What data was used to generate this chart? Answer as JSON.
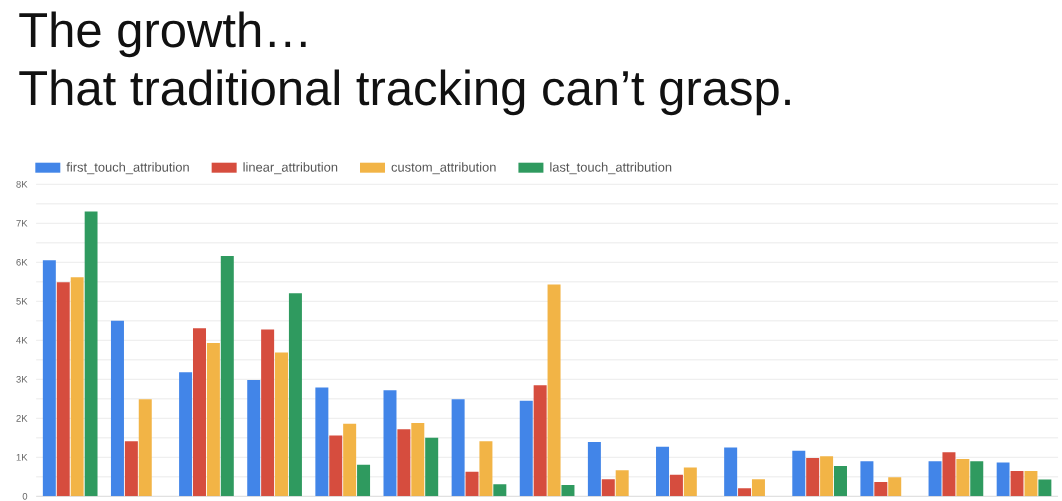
{
  "chart_data": {
    "type": "bar",
    "title": "The growth…",
    "subtitle": "That traditional tracking can’t grasp.",
    "categories": [
      null,
      null,
      null,
      null,
      null,
      null,
      null,
      null,
      null,
      null,
      null,
      null,
      null,
      null,
      null
    ],
    "series": [
      {
        "name": "first_touch_attribution",
        "color": "#4285e8",
        "values": [
          6050,
          4500,
          3180,
          2980,
          2790,
          2720,
          2490,
          2450,
          1390,
          1270,
          1250,
          1170,
          900,
          900,
          870
        ]
      },
      {
        "name": "linear_attribution",
        "color": "#d64d3e",
        "values": [
          5490,
          1410,
          4310,
          4280,
          1560,
          1720,
          630,
          2850,
          440,
          550,
          210,
          980,
          370,
          1130,
          650
        ]
      },
      {
        "name": "custom_attribution",
        "color": "#f2b446",
        "values": [
          5620,
          2490,
          3930,
          3690,
          1860,
          1880,
          1410,
          5430,
          670,
          740,
          440,
          1030,
          490,
          960,
          650
        ]
      },
      {
        "name": "last_touch_attribution",
        "color": "#2f9a5f",
        "values": [
          7300,
          null,
          6160,
          5210,
          810,
          1500,
          310,
          290,
          null,
          null,
          null,
          780,
          null,
          900,
          430
        ]
      }
    ],
    "ylim": [
      0,
      8000
    ],
    "yticks": [
      {
        "value": 0,
        "label": "0"
      },
      {
        "value": 500,
        "label": null
      },
      {
        "value": 1000,
        "label": "1K"
      },
      {
        "value": 1500,
        "label": null
      },
      {
        "value": 2000,
        "label": "2K"
      },
      {
        "value": 2500,
        "label": null
      },
      {
        "value": 3000,
        "label": "3K"
      },
      {
        "value": 3500,
        "label": null
      },
      {
        "value": 4000,
        "label": "4K"
      },
      {
        "value": 4500,
        "label": null
      },
      {
        "value": 5000,
        "label": "5K"
      },
      {
        "value": 5500,
        "label": null
      },
      {
        "value": 6000,
        "label": "6K"
      },
      {
        "value": 6500,
        "label": null
      },
      {
        "value": 7000,
        "label": "7K"
      },
      {
        "value": 7500,
        "label": null
      },
      {
        "value": 8000,
        "label": "8K"
      }
    ],
    "grid": "y",
    "legend": "top left"
  }
}
